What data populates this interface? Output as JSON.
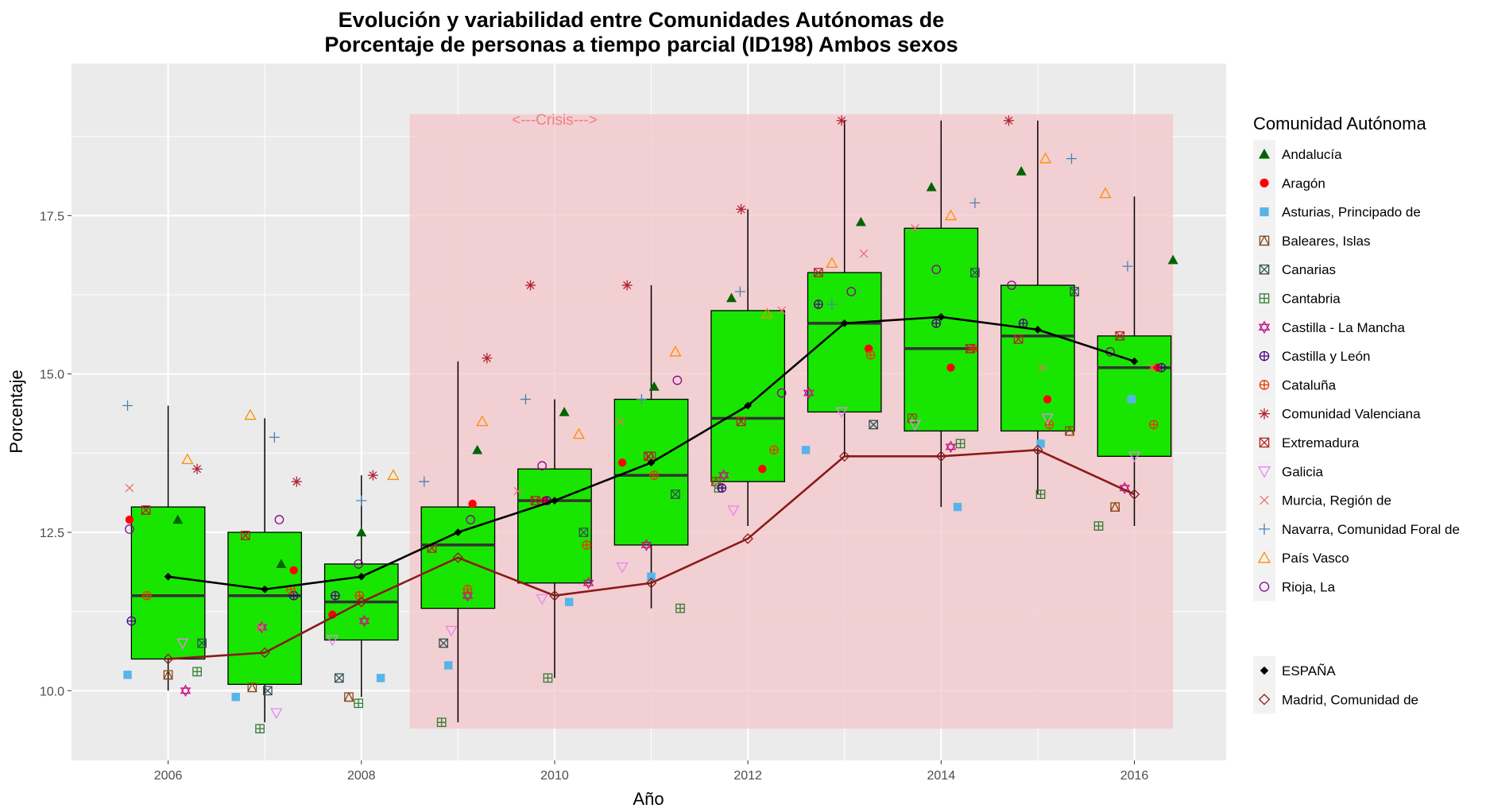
{
  "chart_data": {
    "type": "boxplot",
    "title_line1": "Evolución y variabilidad entre Comunidades Autónomas de",
    "title_line2": "Porcentaje de personas a tiempo parcial (ID198) Ambos sexos",
    "xlabel": "Año",
    "ylabel": "Porcentaje",
    "xlim": [
      2005,
      2016.95
    ],
    "ylim": [
      8.9,
      19.9
    ],
    "x_ticks": [
      "2006",
      "2008",
      "2010",
      "2012",
      "2014",
      "2016"
    ],
    "x_tick_values": [
      2006,
      2008,
      2010,
      2012,
      2014,
      2016
    ],
    "y_ticks": [
      "10.0",
      "12.5",
      "15.0",
      "17.5"
    ],
    "y_tick_values": [
      10.0,
      12.5,
      15.0,
      17.5
    ],
    "grid": true,
    "colors": {
      "panel": "#ebebeb",
      "grid": "#ffffff",
      "crisis_band": "#f4c6c9",
      "crisis_text": "#f08080",
      "box_fill": "#19e600",
      "espana_line": "#000000",
      "madrid_line": "#8b1a1a"
    },
    "crisis": {
      "label": "<---Crisis--->",
      "x_start": 2008.5,
      "x_end": 2016.4,
      "y_bottom": 9.4,
      "y_top": 19.1
    },
    "boxes": [
      {
        "year": 2006,
        "lower_whisker": 10.0,
        "q1": 10.5,
        "median": 11.5,
        "q3": 12.9,
        "upper_whisker": 14.5
      },
      {
        "year": 2007,
        "lower_whisker": 9.5,
        "q1": 10.1,
        "median": 11.5,
        "q3": 12.5,
        "upper_whisker": 14.3
      },
      {
        "year": 2008,
        "lower_whisker": 9.9,
        "q1": 10.8,
        "median": 11.4,
        "q3": 12.0,
        "upper_whisker": 13.4
      },
      {
        "year": 2009,
        "lower_whisker": 9.5,
        "q1": 11.3,
        "median": 12.3,
        "q3": 12.9,
        "upper_whisker": 15.2
      },
      {
        "year": 2010,
        "lower_whisker": 10.2,
        "q1": 11.7,
        "median": 13.0,
        "q3": 13.5,
        "upper_whisker": 14.6
      },
      {
        "year": 2011,
        "lower_whisker": 11.3,
        "q1": 12.3,
        "median": 13.4,
        "q3": 14.6,
        "upper_whisker": 16.4
      },
      {
        "year": 2012,
        "lower_whisker": 12.6,
        "q1": 13.3,
        "median": 14.3,
        "q3": 16.0,
        "upper_whisker": 17.6
      },
      {
        "year": 2013,
        "lower_whisker": 13.7,
        "q1": 14.4,
        "median": 15.8,
        "q3": 16.6,
        "upper_whisker": 19.0
      },
      {
        "year": 2014,
        "lower_whisker": 12.9,
        "q1": 14.1,
        "median": 15.4,
        "q3": 17.3,
        "upper_whisker": 19.0
      },
      {
        "year": 2015,
        "lower_whisker": 13.1,
        "q1": 14.1,
        "median": 15.6,
        "q3": 16.4,
        "upper_whisker": 19.0
      },
      {
        "year": 2016,
        "lower_whisker": 12.6,
        "q1": 13.7,
        "median": 15.1,
        "q3": 15.6,
        "upper_whisker": 17.8
      }
    ],
    "lines": [
      {
        "name": "ESPAÑA",
        "color": "#000000",
        "marker": "diamond-filled",
        "x": [
          2006,
          2007,
          2008,
          2009,
          2010,
          2011,
          2012,
          2013,
          2014,
          2015,
          2016
        ],
        "y": [
          11.8,
          11.6,
          11.8,
          12.5,
          13.0,
          13.6,
          14.5,
          15.8,
          15.9,
          15.7,
          15.2
        ]
      },
      {
        "name": "Madrid, Comunidad de",
        "color": "#8b1a1a",
        "marker": "diamond-open",
        "x": [
          2006,
          2007,
          2008,
          2009,
          2010,
          2011,
          2012,
          2013,
          2014,
          2015,
          2016
        ],
        "y": [
          10.5,
          10.6,
          11.4,
          12.1,
          11.5,
          11.7,
          12.4,
          13.7,
          13.7,
          13.8,
          13.1
        ]
      }
    ],
    "series": [
      {
        "name": "Andalucía",
        "color": "#006400",
        "marker": "triangle-filled",
        "x": [
          2006.1,
          2007.17,
          2008.0,
          2009.2,
          2010.1,
          2011.03,
          2011.83,
          2013.17,
          2013.9,
          2014.83,
          2016.4
        ],
        "y": [
          12.7,
          12.0,
          12.5,
          13.8,
          14.4,
          14.8,
          16.2,
          17.4,
          17.95,
          18.2,
          16.8
        ]
      },
      {
        "name": "Aragón",
        "color": "#ff0000",
        "marker": "circle-filled",
        "x": [
          2005.6,
          2007.3,
          2007.7,
          2009.15,
          2009.9,
          2010.7,
          2012.15,
          2013.25,
          2014.1,
          2015.1,
          2016.23
        ],
        "y": [
          12.7,
          11.9,
          11.2,
          12.95,
          13.0,
          13.6,
          13.5,
          15.4,
          15.1,
          14.6,
          15.1
        ]
      },
      {
        "name": "Asturias, Principado de",
        "color": "#56b4e9",
        "marker": "square-filled",
        "x": [
          2005.58,
          2006.7,
          2008.2,
          2008.9,
          2010.15,
          2011.0,
          2012.6,
          2014.17,
          2015.03,
          2015.97
        ],
        "y": [
          10.25,
          9.9,
          10.2,
          10.4,
          11.4,
          11.8,
          13.8,
          12.9,
          13.9,
          14.6
        ]
      },
      {
        "name": "Baleares, Islas",
        "color": "#8b4513",
        "marker": "square-triangle",
        "x": [
          2006.0,
          2006.87,
          2007.87,
          2011.0,
          2011.67,
          2013.7,
          2015.33,
          2015.8
        ],
        "y": [
          10.25,
          10.05,
          9.9,
          13.7,
          13.3,
          14.3,
          14.1,
          12.9
        ]
      },
      {
        "name": "Canarias",
        "color": "#2f4f4f",
        "marker": "square-x",
        "x": [
          2006.35,
          2007.03,
          2007.77,
          2008.85,
          2010.3,
          2011.25,
          2013.3,
          2014.35,
          2015.38
        ],
        "y": [
          10.75,
          10.0,
          10.2,
          10.75,
          12.5,
          13.1,
          14.2,
          16.6,
          16.3
        ]
      },
      {
        "name": "Cantabria",
        "color": "#2e7d32",
        "marker": "square-plus",
        "x": [
          2006.3,
          2006.95,
          2007.97,
          2008.83,
          2009.93,
          2011.3,
          2011.7,
          2014.2,
          2015.03,
          2015.63
        ],
        "y": [
          10.3,
          9.4,
          9.8,
          9.5,
          10.2,
          11.3,
          13.2,
          13.9,
          13.1,
          12.6
        ]
      },
      {
        "name": "Castilla - La Mancha",
        "color": "#c71585",
        "marker": "star-of-david",
        "x": [
          2006.18,
          2006.97,
          2008.03,
          2009.1,
          2010.35,
          2010.95,
          2011.75,
          2012.63,
          2014.1,
          2015.9
        ],
        "y": [
          10.0,
          11.0,
          11.1,
          11.5,
          11.7,
          12.3,
          13.4,
          14.7,
          13.85,
          13.2
        ]
      },
      {
        "name": "Castilla y León",
        "color": "#4b0082",
        "marker": "circle-plus",
        "x": [
          2005.62,
          2007.3,
          2007.73,
          2009.92,
          2011.73,
          2012.73,
          2013.95,
          2014.85,
          2016.28
        ],
        "y": [
          11.1,
          11.5,
          11.5,
          13.0,
          13.2,
          16.1,
          15.8,
          15.8,
          15.1
        ]
      },
      {
        "name": "Cataluña",
        "color": "#e63900",
        "marker": "circle-plus",
        "x": [
          2005.78,
          2007.27,
          2007.98,
          2009.1,
          2010.33,
          2011.03,
          2012.27,
          2013.27,
          2014.33,
          2015.12,
          2016.2
        ],
        "y": [
          11.5,
          11.6,
          11.5,
          11.6,
          12.3,
          13.4,
          13.8,
          15.3,
          15.4,
          14.2,
          14.2
        ]
      },
      {
        "name": "Comunidad Valenciana",
        "color": "#b22234",
        "marker": "asterisk",
        "x": [
          2006.3,
          2007.33,
          2008.12,
          2009.3,
          2009.75,
          2010.75,
          2011.93,
          2012.97,
          2014.7
        ],
        "y": [
          13.5,
          13.3,
          13.4,
          15.25,
          16.4,
          16.4,
          17.6,
          19.0,
          19.0
        ]
      },
      {
        "name": "Extremadura",
        "color": "#b22222",
        "marker": "square-x",
        "x": [
          2005.77,
          2006.8,
          2008.73,
          2009.8,
          2010.97,
          2011.93,
          2012.73,
          2014.3,
          2014.8,
          2015.85
        ],
        "y": [
          12.85,
          12.45,
          12.25,
          13.0,
          13.7,
          14.25,
          16.6,
          15.4,
          15.55,
          15.6
        ]
      },
      {
        "name": "Galicia",
        "color": "#ee82ee",
        "marker": "triangle-down-open",
        "x": [
          2006.15,
          2007.12,
          2007.7,
          2008.93,
          2009.87,
          2010.7,
          2011.85,
          2012.97,
          2013.73,
          2015.1,
          2016.0
        ],
        "y": [
          10.75,
          9.65,
          10.8,
          10.95,
          11.45,
          11.95,
          12.85,
          14.4,
          14.2,
          14.3,
          13.7
        ]
      },
      {
        "name": "Murcia, Región de",
        "color": "#f06c6c",
        "marker": "x",
        "x": [
          2005.6,
          2006.95,
          2009.62,
          2010.68,
          2012.35,
          2013.2,
          2013.73,
          2015.05,
          2016.18
        ],
        "y": [
          13.2,
          11.0,
          13.15,
          14.25,
          16.0,
          16.9,
          17.3,
          15.1,
          15.1
        ]
      },
      {
        "name": "Navarra, Comunidad Foral de",
        "color": "#4682b4",
        "marker": "plus",
        "x": [
          2005.58,
          2007.1,
          2008.0,
          2008.65,
          2009.7,
          2010.9,
          2011.92,
          2012.87,
          2014.35,
          2015.35,
          2015.93
        ],
        "y": [
          14.5,
          14.0,
          13.0,
          13.3,
          14.6,
          14.6,
          16.3,
          16.1,
          17.7,
          18.4,
          16.7
        ]
      },
      {
        "name": "País Vasco",
        "color": "#ff8c00",
        "marker": "triangle-open",
        "x": [
          2006.2,
          2006.85,
          2008.33,
          2009.25,
          2010.25,
          2011.25,
          2012.2,
          2012.87,
          2014.1,
          2015.08,
          2015.7
        ],
        "y": [
          13.65,
          14.35,
          13.4,
          14.25,
          14.05,
          15.35,
          15.95,
          16.75,
          17.5,
          18.4,
          17.85
        ]
      },
      {
        "name": "Rioja, La",
        "color": "#8b008b",
        "marker": "circle-open",
        "x": [
          2005.6,
          2007.15,
          2007.97,
          2009.13,
          2009.87,
          2011.27,
          2012.35,
          2013.07,
          2013.95,
          2014.73,
          2015.75
        ],
        "y": [
          12.55,
          12.7,
          12.0,
          12.7,
          13.55,
          14.9,
          14.7,
          16.3,
          16.65,
          16.4,
          15.35
        ]
      }
    ],
    "legend": {
      "title": "Comunidad Autónoma",
      "position": "right",
      "items": [
        "Andalucía",
        "Aragón",
        "Asturias, Principado de",
        "Baleares, Islas",
        "Canarias",
        "Cantabria",
        "Castilla - La Mancha",
        "Castilla y León",
        "Cataluña",
        "Comunidad Valenciana",
        "Extremadura",
        "Galicia",
        "Murcia, Región de",
        "Navarra, Comunidad Foral de",
        "País Vasco",
        "Rioja, La"
      ],
      "items2": [
        "ESPAÑA",
        "Madrid, Comunidad de"
      ]
    }
  }
}
